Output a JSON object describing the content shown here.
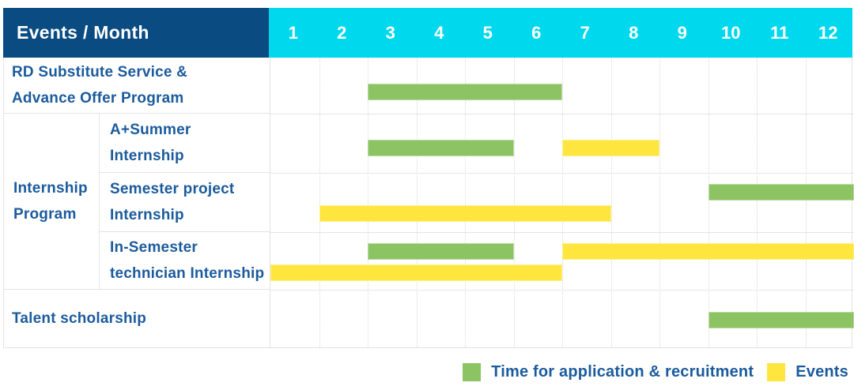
{
  "header": {
    "title": "Events / Month",
    "months": [
      "1",
      "2",
      "3",
      "4",
      "5",
      "6",
      "7",
      "8",
      "9",
      "10",
      "11",
      "12"
    ]
  },
  "colors": {
    "navy_header": "#0a4c82",
    "cyan_header": "#00d8ee",
    "green_recruitment": "#8cc463",
    "yellow_events": "#ffe63e",
    "label_blue": "#1b5b9d"
  },
  "group": {
    "line1": "Internship",
    "line2": "Program"
  },
  "rows": [
    {
      "id": "rd-substitute-service",
      "line1": "RD Substitute Service &",
      "line2": "Advance Offer Program",
      "bars": [
        {
          "series": "recruitment",
          "start": 3,
          "end": 6,
          "slot": "mid"
        }
      ]
    },
    {
      "id": "a-plus-summer-internship",
      "line1": "A+Summer",
      "line2": "Internship",
      "bars": [
        {
          "series": "recruitment",
          "start": 3,
          "end": 5,
          "slot": "mid"
        },
        {
          "series": "events",
          "start": 7,
          "end": 8,
          "slot": "mid"
        }
      ]
    },
    {
      "id": "semester-project-internship",
      "line1": "Semester project",
      "line2": "Internship",
      "bars": [
        {
          "series": "recruitment",
          "start": 10,
          "end": 12,
          "slot": "upper"
        },
        {
          "series": "events",
          "start": 2,
          "end": 7,
          "slot": "lower"
        }
      ]
    },
    {
      "id": "in-semester-technician-internship",
      "line1": "In-Semester",
      "line2": "technician Internship",
      "bars": [
        {
          "series": "recruitment",
          "start": 3,
          "end": 5,
          "slot": "upper"
        },
        {
          "series": "events",
          "start": 7,
          "end": 12,
          "slot": "upper"
        },
        {
          "series": "events",
          "start": 1,
          "end": 6,
          "slot": "lower"
        }
      ]
    },
    {
      "id": "talent-scholarship",
      "line1": "Talent scholarship",
      "line2": "",
      "bars": [
        {
          "series": "recruitment",
          "start": 10,
          "end": 12,
          "slot": "center"
        }
      ]
    }
  ],
  "legend": {
    "items": [
      {
        "series": "recruitment",
        "label": "Time for application & recruitment"
      },
      {
        "series": "events",
        "label": "Events"
      }
    ]
  },
  "chart_data": {
    "type": "gantt",
    "title": "Events / Month",
    "x_axis": {
      "label": "Month",
      "ticks": [
        1,
        2,
        3,
        4,
        5,
        6,
        7,
        8,
        9,
        10,
        11,
        12
      ],
      "range": [
        1,
        12
      ]
    },
    "legend": [
      "Time for application & recruitment",
      "Events"
    ],
    "legend_position": "bottom-right",
    "grid": "on",
    "rows": [
      {
        "task": "RD Substitute Service & Advance Offer Program",
        "group": null,
        "bars": [
          {
            "series": "Time for application & recruitment",
            "start_month": 3,
            "end_month": 6
          }
        ]
      },
      {
        "task": "A+Summer Internship",
        "group": "Internship Program",
        "bars": [
          {
            "series": "Time for application & recruitment",
            "start_month": 3,
            "end_month": 5
          },
          {
            "series": "Events",
            "start_month": 7,
            "end_month": 8
          }
        ]
      },
      {
        "task": "Semester project Internship",
        "group": "Internship Program",
        "bars": [
          {
            "series": "Time for application & recruitment",
            "start_month": 10,
            "end_month": 12
          },
          {
            "series": "Events",
            "start_month": 2,
            "end_month": 7
          }
        ]
      },
      {
        "task": "In-Semester technician Internship",
        "group": "Internship Program",
        "bars": [
          {
            "series": "Time for application & recruitment",
            "start_month": 3,
            "end_month": 5
          },
          {
            "series": "Events",
            "start_month": 7,
            "end_month": 12
          },
          {
            "series": "Events",
            "start_month": 1,
            "end_month": 6
          }
        ]
      },
      {
        "task": "Talent scholarship",
        "group": null,
        "bars": [
          {
            "series": "Time for application & recruitment",
            "start_month": 10,
            "end_month": 12
          }
        ]
      }
    ]
  }
}
